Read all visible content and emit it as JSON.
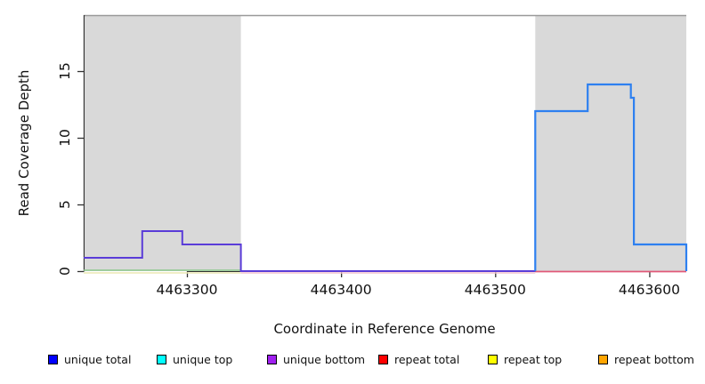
{
  "figure": {
    "ylabel": "Read Coverage Depth",
    "xlabel": "Coordinate in Reference Genome"
  },
  "legend": {
    "position": "bottom",
    "items": [
      {
        "label": "unique total",
        "color": "#0000ff"
      },
      {
        "label": "unique top",
        "color": "#00ffff"
      },
      {
        "label": "unique bottom",
        "color": "#a020f0"
      },
      {
        "label": "repeat total",
        "color": "#ff0000"
      },
      {
        "label": "repeat top",
        "color": "#ffff00"
      },
      {
        "label": "repeat bottom",
        "color": "#ffa500"
      }
    ]
  },
  "chart_data": {
    "type": "line",
    "subtype": "step-coverage-plot",
    "title": "",
    "xlabel": "Coordinate in Reference Genome",
    "ylabel": "Read Coverage Depth",
    "x_range": [
      4463233,
      4463624
    ],
    "y_range": [
      0,
      19.2
    ],
    "x_ticks": [
      4463300,
      4463400,
      4463500,
      4463600
    ],
    "y_ticks": [
      0,
      5,
      10,
      15
    ],
    "grid": false,
    "legend_position": "bottom",
    "shaded_regions": {
      "color": "#d9d9d9",
      "ranges": [
        [
          4463234,
          4463335
        ],
        [
          4463526,
          4463624
        ]
      ]
    },
    "series": [
      {
        "name": "unique total",
        "color": "#0000ff",
        "steps": [
          [
            4463233,
            1
          ],
          [
            4463271,
            3
          ],
          [
            4463297,
            2
          ],
          [
            4463335,
            0
          ],
          [
            4463526,
            12
          ],
          [
            4463560,
            14
          ],
          [
            4463588,
            13
          ],
          [
            4463590,
            2
          ],
          [
            4463624,
            0
          ]
        ]
      },
      {
        "name": "unique top",
        "color": "#00ffff",
        "steps": [
          [
            4463233,
            0
          ],
          [
            4463526,
            12
          ],
          [
            4463560,
            14
          ],
          [
            4463588,
            13
          ],
          [
            4463590,
            2
          ],
          [
            4463624,
            0
          ]
        ]
      },
      {
        "name": "unique bottom",
        "color": "#a020f0",
        "steps": [
          [
            4463233,
            1
          ],
          [
            4463271,
            3
          ],
          [
            4463297,
            2
          ],
          [
            4463335,
            0
          ],
          [
            4463624,
            0
          ]
        ]
      },
      {
        "name": "repeat total",
        "color": "#ff0000",
        "steps": [
          [
            4463233,
            0
          ],
          [
            4463624,
            0
          ]
        ]
      },
      {
        "name": "repeat top",
        "color": "#ffff00",
        "steps": [
          [
            4463233,
            0
          ],
          [
            4463624,
            0
          ]
        ]
      },
      {
        "name": "repeat bottom",
        "color": "#ffa500",
        "steps": [
          [
            4463233,
            0
          ],
          [
            4463624,
            0
          ]
        ]
      }
    ],
    "rendered_lines": [
      {
        "name": "repeat-top-baseline-left",
        "color": "#ece8b4",
        "width": 1.6,
        "dy": 2,
        "points": [
          [
            4463233,
            0
          ],
          [
            4463335,
            0
          ]
        ]
      },
      {
        "name": "repeat-baseline-middle",
        "color": "#f2c2ce",
        "width": 1.6,
        "dy": 2,
        "points": [
          [
            4463335,
            0
          ],
          [
            4463526,
            0
          ]
        ]
      },
      {
        "name": "repeat-total-baseline-right",
        "color": "#e05878",
        "width": 1.8,
        "dy": 0.5,
        "points": [
          [
            4463526,
            0
          ],
          [
            4463624,
            0
          ]
        ]
      },
      {
        "name": "unique-top-baseline-left",
        "color": "#8cc88c",
        "width": 1.6,
        "dy": -1,
        "points": [
          [
            4463233,
            0
          ],
          [
            4463335,
            0
          ]
        ]
      },
      {
        "name": "unique-bottom-step-line",
        "color": "#5a3cd8",
        "width": 2,
        "dy": 0,
        "points": [
          [
            4463233,
            1
          ],
          [
            4463271,
            1
          ],
          [
            4463271,
            3
          ],
          [
            4463297,
            3
          ],
          [
            4463297,
            2
          ],
          [
            4463335,
            2
          ],
          [
            4463335,
            0
          ],
          [
            4463526,
            0
          ]
        ]
      },
      {
        "name": "unique-total-step-line",
        "color": "#2e80f0",
        "width": 2.2,
        "dy": 0,
        "points": [
          [
            4463526,
            0
          ],
          [
            4463526,
            12
          ],
          [
            4463560,
            12
          ],
          [
            4463560,
            14
          ],
          [
            4463588,
            14
          ],
          [
            4463588,
            13
          ],
          [
            4463590,
            13
          ],
          [
            4463590,
            2
          ],
          [
            4463624,
            2
          ],
          [
            4463624,
            0
          ]
        ]
      }
    ],
    "axis_colors": {
      "axis_line": "#333333",
      "tick": "#333333",
      "plot_top_border": "#999999"
    }
  }
}
